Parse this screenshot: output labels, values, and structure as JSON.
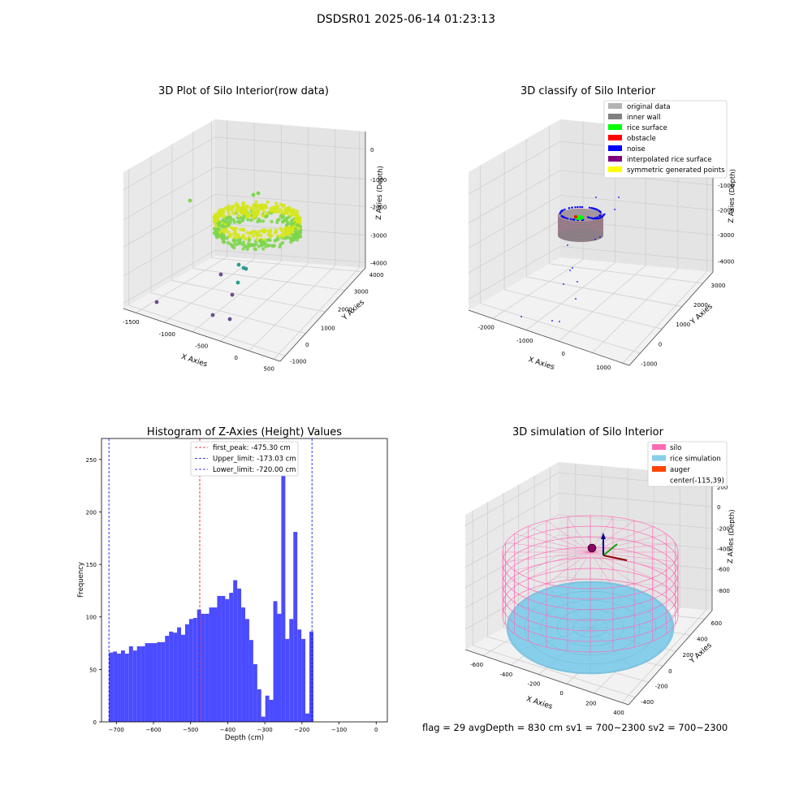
{
  "suptitle": "DSDSR01 2025-06-14 01:23:13",
  "footer": "flag = 29  avgDepth = 830 cm  sv1 = 700~2300  sv2 = 700~2300",
  "colors": {
    "hist_bar": "#4b4bff",
    "first_peak_line": "#ff0000",
    "limit_line": "#0000ff",
    "raw_yellow": "#d4e61a",
    "raw_green": "#7dd64a",
    "raw_teal": "#2a9d8f",
    "raw_purple": "#6a4c93",
    "silo": "#ff69b4",
    "rice_sim": "#87ceeb",
    "auger": "#ff4500",
    "original": "#b3b3b3",
    "inner_wall": "#808080",
    "rice_surface": "#00ff00",
    "obstacle": "#ff0000",
    "noise": "#0000ff",
    "interp": "#800080",
    "symmetric": "#ffff00"
  },
  "chart_data": [
    {
      "type": "scatter",
      "projection": "3d",
      "title": "3D Plot of Silo Interior(row data)",
      "xlabel": "X Axies",
      "ylabel": "Y Axies",
      "zlabel": "Z Axies (Depth)",
      "xticks": [
        "-1500",
        "-1000",
        "-500",
        "0",
        "500"
      ],
      "yticks": [
        "-1000",
        "0",
        "1000",
        "2000",
        "3000",
        "4000"
      ],
      "zticks": [
        "0",
        "-1000",
        "-2000",
        "-3000",
        "-4000"
      ],
      "xlim": [
        -1700,
        600
      ],
      "ylim": [
        -1000,
        4000
      ],
      "zlim": [
        -4500,
        0
      ],
      "grid": true
    },
    {
      "type": "scatter",
      "projection": "3d",
      "title": "3D classify of Silo Interior",
      "xlabel": "X Axies",
      "ylabel": "Y Axies",
      "zlabel": "Z Axies (Depth)",
      "xticks": [
        "-2000",
        "-1000",
        "0",
        "1000"
      ],
      "yticks": [
        "-1000",
        "0",
        "1000",
        "2000",
        "3000"
      ],
      "zticks": [
        "0",
        "-1000",
        "-2000",
        "-3000",
        "-4000"
      ],
      "legend_position": "top-right",
      "legend": [
        {
          "label": "original data",
          "color": "#b3b3b3"
        },
        {
          "label": "inner wall",
          "color": "#808080"
        },
        {
          "label": "rice surface",
          "color": "#00ff00"
        },
        {
          "label": "obstacle",
          "color": "#ff0000"
        },
        {
          "label": "noise",
          "color": "#0000ff"
        },
        {
          "label": "interpolated rice surface",
          "color": "#800080"
        },
        {
          "label": "symmetric generated points",
          "color": "#ffff00"
        }
      ],
      "grid": true
    },
    {
      "type": "bar",
      "title": "Histogram of Z-Axies (Height) Values",
      "xlabel": "Depth (cm)",
      "ylabel": "Frequency",
      "xlim": [
        -740,
        30
      ],
      "ylim": [
        0,
        270
      ],
      "xticks": [
        -700,
        -600,
        -500,
        -400,
        -300,
        -200,
        -100,
        0
      ],
      "yticks": [
        0,
        50,
        100,
        150,
        200,
        250
      ],
      "bin_width": 10.8,
      "bin_start": -720,
      "values": [
        66,
        67,
        65,
        68,
        65,
        72,
        68,
        72,
        72,
        75,
        75,
        75,
        76,
        76,
        82,
        86,
        85,
        90,
        83,
        93,
        98,
        99,
        107,
        103,
        103,
        109,
        109,
        120,
        120,
        117,
        123,
        135,
        127,
        109,
        98,
        78,
        55,
        31,
        5,
        25,
        21,
        115,
        103,
        258,
        79,
        98,
        181,
        88,
        79,
        8,
        86
      ],
      "lines": [
        {
          "label": "first_peak: -475.30 cm",
          "x": -475.3,
          "color": "#ff0000"
        },
        {
          "label": "Upper_limit: -173.03 cm",
          "x": -173.03,
          "color": "#0000ff"
        },
        {
          "label": "Lower_limit: -720.00 cm",
          "x": -720.0,
          "color": "#0000ff"
        }
      ],
      "legend_position": "top-center"
    },
    {
      "type": "scatter",
      "projection": "3d",
      "title": "3D simulation of Silo Interior",
      "xlabel": "X Axies",
      "ylabel": "Y Axies",
      "zlabel": "Z Axies (Depth)",
      "xticks": [
        "-600",
        "-400",
        "-200",
        "0",
        "200",
        "400"
      ],
      "yticks": [
        "-400",
        "-200",
        "0",
        "200",
        "400",
        "600"
      ],
      "zticks": [
        "200",
        "0",
        "-200",
        "-400",
        "-600",
        "-800"
      ],
      "legend_position": "top-right",
      "legend": [
        {
          "label": "silo",
          "color": "#ff69b4"
        },
        {
          "label": "rice simulation",
          "color": "#87ceeb"
        },
        {
          "label": "auger",
          "color": "#ff4500"
        },
        {
          "label": "center(-115,39)",
          "color": ""
        }
      ],
      "grid": true
    }
  ]
}
